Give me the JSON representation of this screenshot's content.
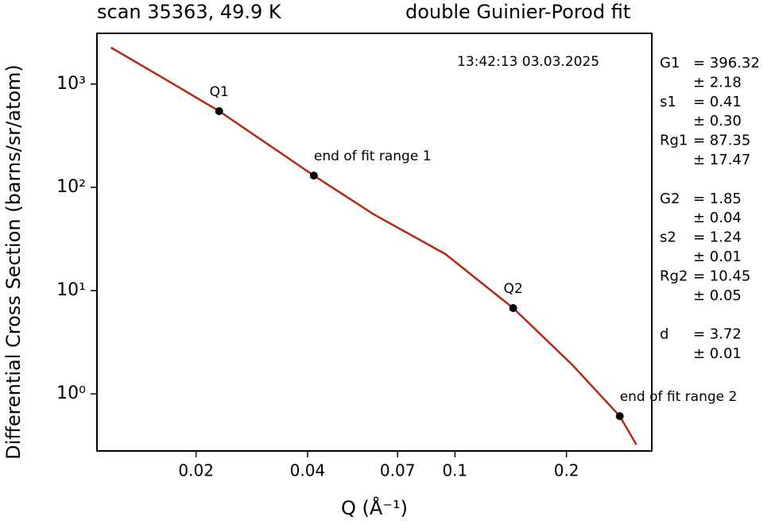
{
  "chart_data": {
    "type": "line",
    "title": "scan 35363, 49.9 K",
    "subtitle": "double Guinier-Porod fit",
    "annotation": "13:42:13 03.03.2025",
    "xlabel": "Q (Å⁻¹)",
    "ylabel": "Differential Cross Section (barns/sr/atom)",
    "xscale": "log",
    "yscale": "log",
    "xlim": [
      0.0108,
      0.34
    ],
    "ylim": [
      0.28,
      3100
    ],
    "xticks": [
      0.02,
      0.04,
      0.07,
      0.1,
      0.2
    ],
    "yticks": [
      {
        "value": 1,
        "label": "10⁰"
      },
      {
        "value": 10,
        "label": "10¹"
      },
      {
        "value": 100,
        "label": "10²"
      },
      {
        "value": 1000,
        "label": "10³"
      }
    ],
    "series": [
      {
        "color": "#b22a10",
        "x": [
          0.01178,
          0.01585,
          0.02308,
          0.0416,
          0.0604,
          0.0942,
          0.1436,
          0.208,
          0.2786,
          0.309
        ],
        "values": [
          2259,
          1215,
          547,
          130,
          54.7,
          22.6,
          6.78,
          1.89,
          0.609,
          0.322
        ]
      }
    ],
    "points": {
      "color": "#000000",
      "x": [
        0.02308,
        0.0416,
        0.1436,
        0.2786
      ],
      "values": [
        547,
        130,
        6.78,
        0.609
      ],
      "labels": [
        "Q1",
        "end of fit range 1",
        "Q2",
        "end of fit range 2"
      ]
    },
    "param_groups": [
      [
        {
          "name": "G1",
          "value": "= 396.32",
          "error": "± 2.18"
        },
        {
          "name": "s1",
          "value": "= 0.41",
          "error": "± 0.30"
        },
        {
          "name": "Rg1",
          "value": "= 87.35",
          "error": "± 17.47"
        }
      ],
      [
        {
          "name": "G2",
          "value": "= 1.85",
          "error": "± 0.04"
        },
        {
          "name": "s2",
          "value": "= 1.24",
          "error": "± 0.01"
        },
        {
          "name": "Rg2",
          "value": "= 10.45",
          "error": "± 0.05"
        }
      ],
      [
        {
          "name": "d",
          "value": "= 3.72",
          "error": "± 0.01"
        }
      ]
    ]
  }
}
